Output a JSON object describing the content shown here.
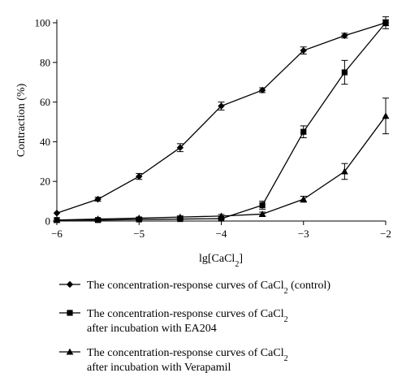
{
  "chart_data": {
    "type": "line",
    "xlabel": {
      "main": "lg[CaCl",
      "sub": "2",
      "end": "]"
    },
    "ylabel": "Contraction (%)",
    "xlim": [
      -6,
      -2
    ],
    "ylim": [
      0,
      100
    ],
    "xticks": [
      -6,
      -5,
      -4,
      -3,
      -2
    ],
    "xtick_labels": [
      "−6",
      "−5",
      "−4",
      "−3",
      "−2"
    ],
    "yticks": [
      0,
      20,
      40,
      60,
      80,
      100
    ],
    "ytick_labels": [
      "0",
      "20",
      "40",
      "60",
      "80",
      "100"
    ],
    "grid": false,
    "legend_position": "bottom",
    "series": [
      {
        "marker": "diamond",
        "legend": {
          "line1": "The concentration-response curves of CaCl",
          "line1_sub": "2",
          "line1_end": " (control)",
          "line2": ""
        },
        "x": [
          -6,
          -5.5,
          -5,
          -4.5,
          -4,
          -3.5,
          -3,
          -2.5,
          -2
        ],
        "y": [
          4,
          11,
          22.5,
          37,
          58,
          66,
          86,
          93.5,
          100
        ],
        "err": [
          0,
          1,
          1.5,
          2,
          2,
          1.2,
          1.8,
          1.2,
          1.5
        ]
      },
      {
        "marker": "square",
        "legend": {
          "line1": "The concentration-response curves of CaCl",
          "line1_sub": "2",
          "line1_end": "",
          "line2": "after incubation with EA204"
        },
        "x": [
          -6,
          -5.5,
          -5,
          -4.5,
          -4,
          -3.5,
          -3,
          -2.5,
          -2
        ],
        "y": [
          0.5,
          0.5,
          0.8,
          1,
          1.2,
          8,
          45,
          75,
          100
        ],
        "err": [
          0,
          0.3,
          0.3,
          0.3,
          0.4,
          2,
          3,
          6,
          3
        ]
      },
      {
        "marker": "triangle",
        "legend": {
          "line1": "The concentration-response curves of CaCl",
          "line1_sub": "2",
          "line1_end": "",
          "line2": "after incubation with Verapamil"
        },
        "x": [
          -6,
          -5.5,
          -5,
          -4.5,
          -4,
          -3.5,
          -3,
          -2.5,
          -2
        ],
        "y": [
          0.5,
          1,
          1.5,
          2,
          2.5,
          3.5,
          11,
          25,
          53
        ],
        "err": [
          0,
          0.3,
          0.4,
          0.6,
          0.8,
          1,
          1.5,
          4,
          9
        ]
      }
    ]
  }
}
